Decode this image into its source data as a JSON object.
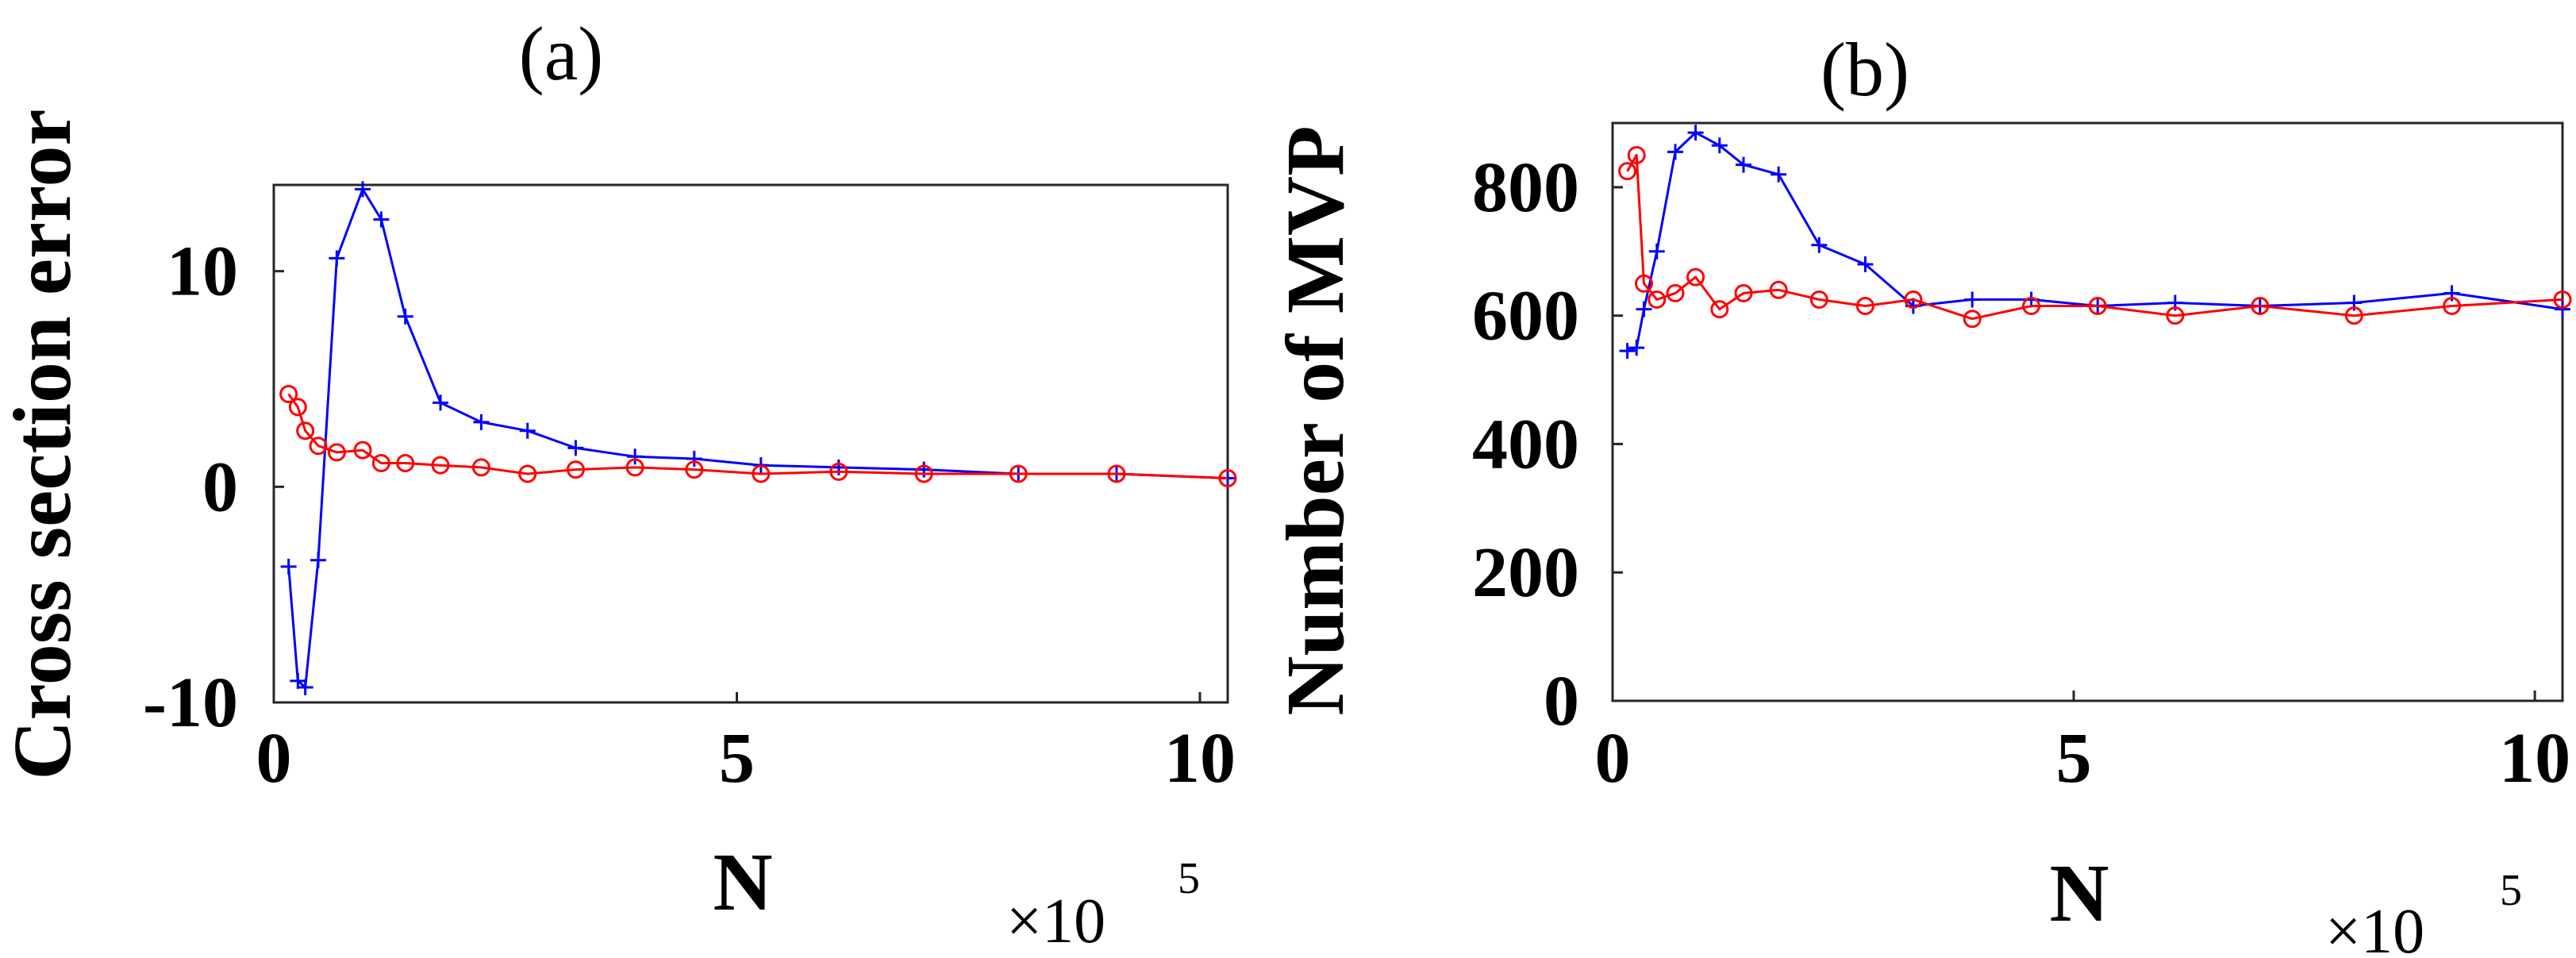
{
  "chart_data": [
    {
      "type": "line",
      "title": "(a)",
      "xlabel": "N",
      "ylabel": "Cross section error",
      "x_multiplier": {
        "base": "×10",
        "exponent": "5"
      },
      "xlim": [
        0,
        10.3
      ],
      "ylim": [
        -10,
        14
      ],
      "xticks": [
        0,
        5,
        10
      ],
      "yticks": [
        -10,
        0,
        10
      ],
      "xtick_labels": [
        "0",
        "5",
        "10"
      ],
      "ytick_labels": [
        "-10",
        "0",
        "10"
      ],
      "grid": false,
      "series": [
        {
          "color": "#0000ff",
          "marker": "plus",
          "x": [
            0.16,
            0.26,
            0.34,
            0.48,
            0.68,
            0.96,
            1.16,
            1.42,
            1.8,
            2.24,
            2.74,
            3.26,
            3.9,
            4.54,
            5.26,
            6.1,
            7.02,
            8.04,
            9.1,
            10.3
          ],
          "y": [
            -3.7,
            -9.0,
            -9.3,
            -3.4,
            10.6,
            13.8,
            12.4,
            7.9,
            3.9,
            3.0,
            2.6,
            1.8,
            1.4,
            1.3,
            1.0,
            0.9,
            0.8,
            0.6,
            0.6,
            0.4
          ]
        },
        {
          "color": "#ff0000",
          "marker": "circle",
          "x": [
            0.16,
            0.26,
            0.34,
            0.48,
            0.68,
            0.96,
            1.16,
            1.42,
            1.8,
            2.24,
            2.74,
            3.26,
            3.9,
            4.54,
            5.26,
            6.1,
            7.02,
            8.04,
            9.1,
            10.3
          ],
          "y": [
            4.3,
            3.7,
            2.6,
            1.9,
            1.6,
            1.7,
            1.1,
            1.1,
            1.0,
            0.9,
            0.6,
            0.8,
            0.9,
            0.8,
            0.6,
            0.7,
            0.6,
            0.6,
            0.6,
            0.4
          ]
        }
      ]
    },
    {
      "type": "line",
      "title": "(b)",
      "xlabel": "N",
      "ylabel": "Number of MVP",
      "x_multiplier": {
        "base": "×10",
        "exponent": "5"
      },
      "xlim": [
        0,
        10.3
      ],
      "ylim": [
        0,
        900
      ],
      "xticks": [
        0,
        5,
        10
      ],
      "yticks": [
        0,
        200,
        400,
        600,
        800
      ],
      "xtick_labels": [
        "0",
        "5",
        "10"
      ],
      "ytick_labels": [
        "0",
        "200",
        "400",
        "600",
        "800"
      ],
      "grid": false,
      "series": [
        {
          "color": "#0000ff",
          "marker": "plus",
          "x": [
            0.16,
            0.26,
            0.34,
            0.48,
            0.68,
            0.9,
            1.16,
            1.42,
            1.8,
            2.24,
            2.74,
            3.26,
            3.9,
            4.54,
            5.26,
            6.1,
            7.02,
            8.04,
            9.1,
            10.3
          ],
          "y": [
            545,
            550,
            610,
            700,
            855,
            885,
            865,
            835,
            820,
            710,
            680,
            615,
            625,
            625,
            615,
            620,
            615,
            620,
            635,
            610
          ]
        },
        {
          "color": "#ff0000",
          "marker": "circle",
          "x": [
            0.16,
            0.26,
            0.34,
            0.48,
            0.68,
            0.9,
            1.16,
            1.42,
            1.8,
            2.24,
            2.74,
            3.26,
            3.9,
            4.54,
            5.26,
            6.1,
            7.02,
            8.04,
            9.1,
            10.3
          ],
          "y": [
            825,
            850,
            650,
            625,
            635,
            660,
            610,
            635,
            640,
            625,
            615,
            625,
            595,
            615,
            615,
            600,
            615,
            600,
            615,
            625
          ]
        }
      ]
    }
  ]
}
